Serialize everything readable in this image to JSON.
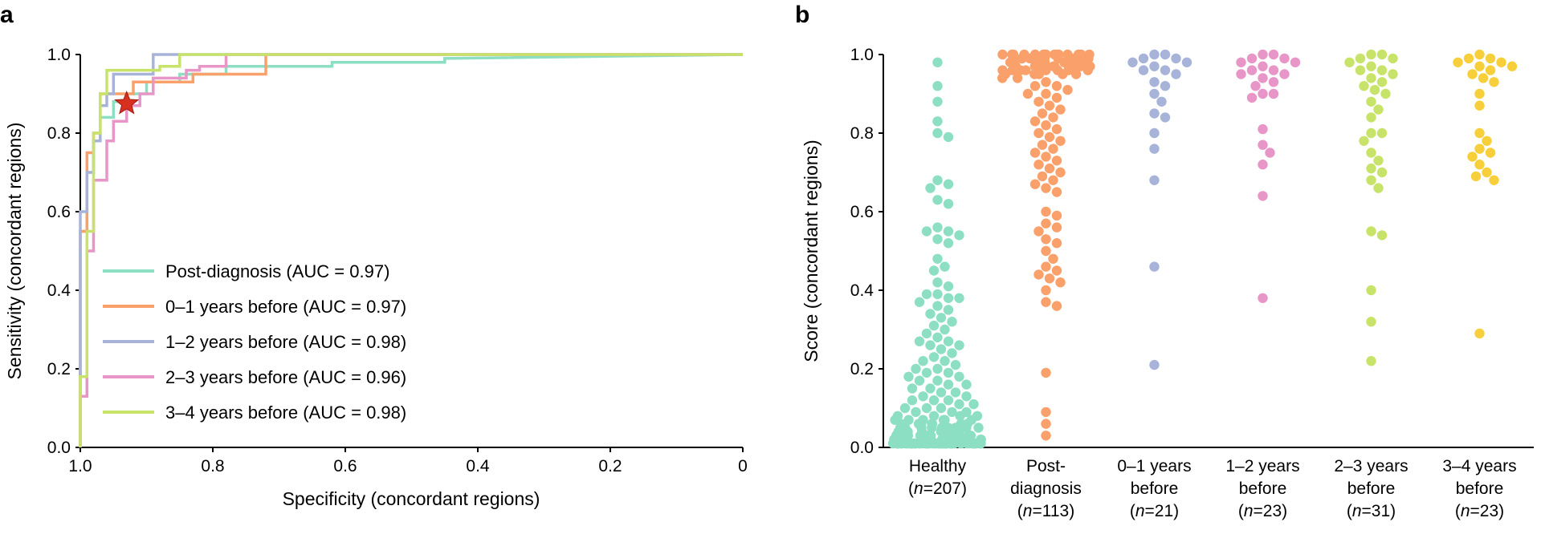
{
  "chart_data": [
    {
      "panel_label": "a",
      "type": "line",
      "xlabel": "Specificity (concordant regions)",
      "ylabel": "Sensitivity (concordant regions)",
      "xlim": [
        1.0,
        0.0
      ],
      "ylim": [
        0.0,
        1.0
      ],
      "x_ticks": [
        "1.0",
        "0.8",
        "0.6",
        "0.4",
        "0.2",
        "0"
      ],
      "x_tick_values": [
        1.0,
        0.8,
        0.6,
        0.4,
        0.2,
        0.0
      ],
      "y_ticks": [
        "0.0",
        "0.2",
        "0.4",
        "0.6",
        "0.8",
        "1.0"
      ],
      "y_tick_values": [
        0.0,
        0.2,
        0.4,
        0.6,
        0.8,
        1.0
      ],
      "legend_position": "lower-left",
      "grid": false,
      "marker": {
        "symbol": "star",
        "specificity": 0.93,
        "sensitivity": 0.875,
        "color": "#d7301f"
      },
      "series": [
        {
          "name": "Post-diagnosis (AUC = 0.97)",
          "color": "#8ddfc3",
          "points": [
            [
              1.0,
              0.0
            ],
            [
              1.0,
              0.55
            ],
            [
              0.99,
              0.55
            ],
            [
              0.99,
              0.7
            ],
            [
              0.98,
              0.7
            ],
            [
              0.98,
              0.78
            ],
            [
              0.97,
              0.78
            ],
            [
              0.97,
              0.84
            ],
            [
              0.95,
              0.84
            ],
            [
              0.95,
              0.88
            ],
            [
              0.93,
              0.88
            ],
            [
              0.93,
              0.9
            ],
            [
              0.9,
              0.9
            ],
            [
              0.9,
              0.93
            ],
            [
              0.85,
              0.93
            ],
            [
              0.85,
              0.95
            ],
            [
              0.78,
              0.95
            ],
            [
              0.78,
              0.97
            ],
            [
              0.62,
              0.97
            ],
            [
              0.62,
              0.98
            ],
            [
              0.45,
              0.98
            ],
            [
              0.45,
              0.99
            ],
            [
              0.0,
              1.0
            ]
          ]
        },
        {
          "name": "0–1 years before (AUC = 0.97)",
          "color": "#f9a06b",
          "points": [
            [
              1.0,
              0.0
            ],
            [
              1.0,
              0.55
            ],
            [
              0.99,
              0.55
            ],
            [
              0.99,
              0.75
            ],
            [
              0.98,
              0.75
            ],
            [
              0.98,
              0.8
            ],
            [
              0.97,
              0.8
            ],
            [
              0.97,
              0.9
            ],
            [
              0.92,
              0.9
            ],
            [
              0.92,
              0.93
            ],
            [
              0.83,
              0.93
            ],
            [
              0.83,
              0.95
            ],
            [
              0.72,
              0.95
            ],
            [
              0.72,
              1.0
            ],
            [
              0.0,
              1.0
            ]
          ]
        },
        {
          "name": "1–2 years before (AUC = 0.98)",
          "color": "#a8b3da",
          "points": [
            [
              1.0,
              0.0
            ],
            [
              1.0,
              0.6
            ],
            [
              0.99,
              0.6
            ],
            [
              0.99,
              0.7
            ],
            [
              0.98,
              0.7
            ],
            [
              0.98,
              0.78
            ],
            [
              0.97,
              0.78
            ],
            [
              0.97,
              0.87
            ],
            [
              0.96,
              0.87
            ],
            [
              0.96,
              0.9
            ],
            [
              0.95,
              0.9
            ],
            [
              0.95,
              0.95
            ],
            [
              0.89,
              0.95
            ],
            [
              0.89,
              1.0
            ],
            [
              0.0,
              1.0
            ]
          ]
        },
        {
          "name": "2–3 years before (AUC = 0.96)",
          "color": "#e895c8",
          "points": [
            [
              1.0,
              0.0
            ],
            [
              1.0,
              0.13
            ],
            [
              0.99,
              0.13
            ],
            [
              0.99,
              0.5
            ],
            [
              0.98,
              0.5
            ],
            [
              0.98,
              0.68
            ],
            [
              0.96,
              0.68
            ],
            [
              0.96,
              0.78
            ],
            [
              0.95,
              0.78
            ],
            [
              0.95,
              0.83
            ],
            [
              0.93,
              0.83
            ],
            [
              0.93,
              0.87
            ],
            [
              0.91,
              0.87
            ],
            [
              0.91,
              0.9
            ],
            [
              0.89,
              0.9
            ],
            [
              0.89,
              0.94
            ],
            [
              0.84,
              0.94
            ],
            [
              0.84,
              0.96
            ],
            [
              0.82,
              0.96
            ],
            [
              0.82,
              0.97
            ],
            [
              0.78,
              0.97
            ],
            [
              0.78,
              1.0
            ],
            [
              0.0,
              1.0
            ]
          ]
        },
        {
          "name": "3–4 years before (AUC = 0.98)",
          "color": "#c8e36a",
          "points": [
            [
              1.0,
              0.0
            ],
            [
              1.0,
              0.18
            ],
            [
              0.99,
              0.18
            ],
            [
              0.99,
              0.55
            ],
            [
              0.98,
              0.55
            ],
            [
              0.98,
              0.8
            ],
            [
              0.97,
              0.8
            ],
            [
              0.97,
              0.9
            ],
            [
              0.96,
              0.9
            ],
            [
              0.96,
              0.96
            ],
            [
              0.88,
              0.96
            ],
            [
              0.88,
              0.97
            ],
            [
              0.85,
              0.97
            ],
            [
              0.85,
              1.0
            ],
            [
              0.0,
              1.0
            ]
          ]
        }
      ]
    },
    {
      "panel_label": "b",
      "type": "scatter",
      "ylabel": "Score (concordant regions)",
      "ylim": [
        0.0,
        1.0
      ],
      "y_ticks": [
        "0.0",
        "0.2",
        "0.4",
        "0.6",
        "0.8",
        "1.0"
      ],
      "y_tick_values": [
        0.0,
        0.2,
        0.4,
        0.6,
        0.8,
        1.0
      ],
      "grid": false,
      "groups": [
        {
          "label_lines": [
            "Healthy",
            "(n=207)"
          ],
          "name": "Healthy",
          "n": "207",
          "color": "#8ddfc3",
          "values": [
            0.98,
            0.92,
            0.88,
            0.83,
            0.8,
            0.79,
            0.68,
            0.67,
            0.66,
            0.63,
            0.62,
            0.56,
            0.55,
            0.55,
            0.54,
            0.53,
            0.52,
            0.48,
            0.46,
            0.45,
            0.42,
            0.41,
            0.39,
            0.39,
            0.38,
            0.38,
            0.37,
            0.36,
            0.35,
            0.34,
            0.33,
            0.32,
            0.31,
            0.3,
            0.29,
            0.28,
            0.27,
            0.27,
            0.26,
            0.26,
            0.25,
            0.24,
            0.23,
            0.22,
            0.22,
            0.21,
            0.2,
            0.2,
            0.19,
            0.19,
            0.18,
            0.18,
            0.17,
            0.17,
            0.16,
            0.16,
            0.15,
            0.15,
            0.14,
            0.14,
            0.13,
            0.13,
            0.12,
            0.12,
            0.12,
            0.11,
            0.11,
            0.1,
            0.1,
            0.1,
            0.09,
            0.09,
            0.09,
            0.08,
            0.08,
            0.08,
            0.08,
            0.07,
            0.07,
            0.07,
            0.07,
            0.07,
            0.07,
            0.06,
            0.06,
            0.06,
            0.06,
            0.06,
            0.06,
            0.06,
            0.05,
            0.05,
            0.05,
            0.05,
            0.05,
            0.05,
            0.05,
            0.05,
            0.05,
            0.04,
            0.04,
            0.04,
            0.04,
            0.04,
            0.04,
            0.04,
            0.04,
            0.04,
            0.04,
            0.04,
            0.03,
            0.03,
            0.03,
            0.03,
            0.03,
            0.03,
            0.03,
            0.03,
            0.03,
            0.03,
            0.03,
            0.03,
            0.03,
            0.02,
            0.02,
            0.02,
            0.02,
            0.02,
            0.02,
            0.02,
            0.02,
            0.02,
            0.02,
            0.02,
            0.02,
            0.02,
            0.02,
            0.02,
            0.02,
            0.01,
            0.01,
            0.01,
            0.01,
            0.01,
            0.01,
            0.01,
            0.01,
            0.01,
            0.01,
            0.01,
            0.01,
            0.01,
            0.01,
            0.01,
            0.01,
            0.01,
            0.01,
            0.01,
            0.01,
            0.01,
            0.01,
            0.01,
            0.01,
            0.01,
            0.01,
            0.01,
            0.01,
            0.01,
            0.01,
            0.01,
            0.01,
            0.01,
            0.01,
            0.01,
            0.01,
            0.01,
            0.01,
            0.01,
            0.01,
            0.01,
            0.01,
            0.01,
            0.01,
            0.01,
            0.01,
            0.01,
            0.01,
            0.01,
            0.01,
            0.01,
            0.01,
            0.01,
            0.01,
            0.01,
            0.01,
            0.01,
            0.01,
            0.01,
            0.01,
            0.01,
            0.01,
            0.01,
            0.01,
            0.01,
            0.01,
            0.01,
            0.01,
            0.01,
            0.01,
            0.01,
            0.01
          ]
        },
        {
          "label_lines": [
            "Post-",
            "diagnosis",
            "(n=113)"
          ],
          "name": "Post-diagnosis",
          "n": "113",
          "color": "#f9a06b",
          "values": [
            1.0,
            1.0,
            1.0,
            1.0,
            1.0,
            1.0,
            1.0,
            1.0,
            1.0,
            1.0,
            1.0,
            1.0,
            1.0,
            1.0,
            0.99,
            0.99,
            0.99,
            0.99,
            0.99,
            0.99,
            0.99,
            0.99,
            0.99,
            0.99,
            0.99,
            0.99,
            0.98,
            0.98,
            0.98,
            0.98,
            0.98,
            0.98,
            0.98,
            0.98,
            0.98,
            0.98,
            0.98,
            0.97,
            0.97,
            0.97,
            0.97,
            0.97,
            0.97,
            0.97,
            0.97,
            0.97,
            0.97,
            0.96,
            0.96,
            0.96,
            0.96,
            0.96,
            0.96,
            0.96,
            0.96,
            0.95,
            0.95,
            0.95,
            0.95,
            0.95,
            0.94,
            0.94,
            0.93,
            0.92,
            0.92,
            0.91,
            0.9,
            0.9,
            0.89,
            0.88,
            0.87,
            0.86,
            0.85,
            0.84,
            0.83,
            0.82,
            0.81,
            0.8,
            0.79,
            0.78,
            0.77,
            0.76,
            0.75,
            0.74,
            0.73,
            0.72,
            0.71,
            0.7,
            0.69,
            0.68,
            0.67,
            0.66,
            0.65,
            0.6,
            0.59,
            0.57,
            0.56,
            0.55,
            0.53,
            0.52,
            0.5,
            0.48,
            0.46,
            0.45,
            0.44,
            0.43,
            0.42,
            0.4,
            0.37,
            0.36,
            0.19,
            0.09,
            0.06,
            0.03
          ]
        },
        {
          "label_lines": [
            "0–1 years",
            "before",
            "(n=21)"
          ],
          "name": "0–1 years before",
          "n": "21",
          "color": "#a8b3da",
          "values": [
            1.0,
            1.0,
            0.99,
            0.99,
            0.98,
            0.97,
            0.96,
            0.95,
            0.93,
            0.92,
            0.9,
            0.88,
            0.84,
            0.8,
            0.76,
            0.68,
            0.46,
            0.21,
            0.96,
            0.98,
            0.85
          ]
        },
        {
          "label_lines": [
            "1–2 years",
            "before",
            "(n=23)"
          ],
          "name": "1–2 years before",
          "n": "23",
          "color": "#e895c8",
          "values": [
            1.0,
            1.0,
            0.99,
            0.99,
            0.98,
            0.97,
            0.96,
            0.96,
            0.95,
            0.95,
            0.94,
            0.93,
            0.9,
            0.9,
            0.81,
            0.77,
            0.75,
            0.72,
            0.64,
            0.38,
            0.98,
            0.92,
            0.89
          ]
        },
        {
          "label_lines": [
            "2–3 years",
            "before",
            "(n=31)"
          ],
          "name": "2–3 years before",
          "n": "31",
          "color": "#c8e36a",
          "values": [
            1.0,
            1.0,
            0.99,
            0.99,
            0.98,
            0.97,
            0.96,
            0.95,
            0.94,
            0.93,
            0.92,
            0.91,
            0.9,
            0.88,
            0.86,
            0.84,
            0.8,
            0.8,
            0.78,
            0.75,
            0.73,
            0.71,
            0.7,
            0.68,
            0.66,
            0.55,
            0.54,
            0.4,
            0.32,
            0.22,
            0.96
          ]
        },
        {
          "label_lines": [
            "3–4 years",
            "before",
            "(n=23)"
          ],
          "name": "3–4 years before",
          "n": "23",
          "color": "#f7cf3a",
          "values": [
            1.0,
            0.99,
            0.99,
            0.98,
            0.98,
            0.97,
            0.96,
            0.95,
            0.94,
            0.93,
            0.9,
            0.87,
            0.8,
            0.78,
            0.76,
            0.75,
            0.74,
            0.72,
            0.7,
            0.69,
            0.68,
            0.29,
            0.97
          ]
        }
      ]
    }
  ]
}
